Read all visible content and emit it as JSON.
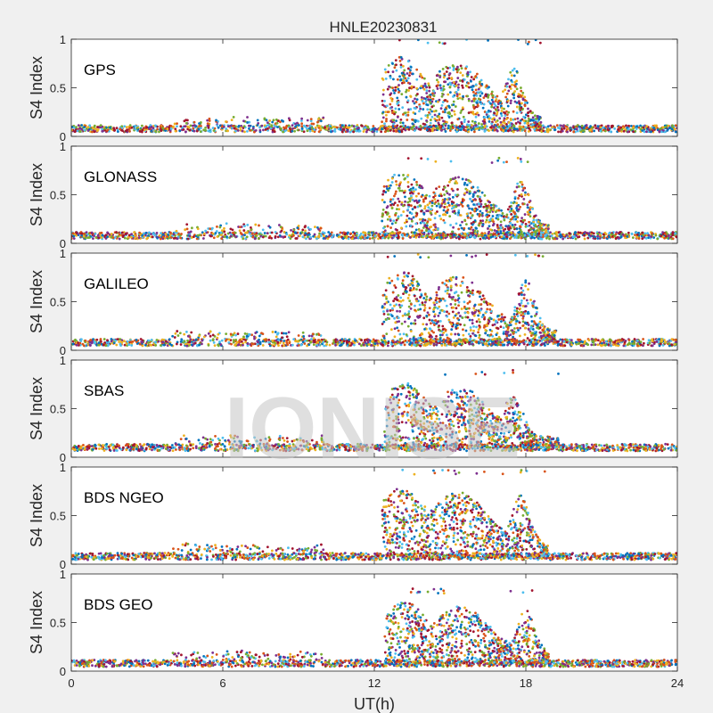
{
  "chart_data": {
    "type": "scatter",
    "title": "HNLE20230831",
    "xlabel": "UT(h)",
    "ylabel": "S4 Index",
    "xlim": [
      0,
      24
    ],
    "ylim": [
      0,
      1
    ],
    "xticks": [
      0,
      6,
      12,
      18,
      24
    ],
    "xtick_labels": [
      "0",
      "6",
      "12",
      "18",
      "24"
    ],
    "yticks": [
      0,
      0.5,
      1
    ],
    "ytick_labels": [
      "0",
      "0.5",
      "1"
    ],
    "grid": false,
    "watermark": "IONISE",
    "series_colors": [
      "#0072BD",
      "#D95319",
      "#EDB120",
      "#7E2F8E",
      "#77AC30",
      "#4DBEEE",
      "#A2142F"
    ],
    "panels": [
      {
        "label": "GPS",
        "background_level": 0.08,
        "active_interval": [
          12.3,
          18.6
        ],
        "active_peak": 1.0,
        "secondary_peak_hour": 17.5
      },
      {
        "label": "GLONASS",
        "background_level": 0.08,
        "active_interval": [
          12.3,
          18.9
        ],
        "active_peak": 0.88,
        "secondary_peak_hour": 17.8
      },
      {
        "label": "GALILEO",
        "background_level": 0.08,
        "active_interval": [
          12.3,
          19.2
        ],
        "active_peak": 1.0,
        "secondary_peak_hour": 18.0
      },
      {
        "label": "SBAS",
        "background_level": 0.1,
        "active_interval": [
          12.4,
          19.3
        ],
        "active_peak": 0.9,
        "secondary_peak_hour": 17.5
      },
      {
        "label": "BDS NGEO",
        "background_level": 0.08,
        "active_interval": [
          12.3,
          18.9
        ],
        "active_peak": 0.97,
        "secondary_peak_hour": 17.8
      },
      {
        "label": "BDS GEO",
        "background_level": 0.08,
        "active_interval": [
          12.4,
          18.9
        ],
        "active_peak": 0.85,
        "secondary_peak_hour": 18.0
      }
    ]
  }
}
